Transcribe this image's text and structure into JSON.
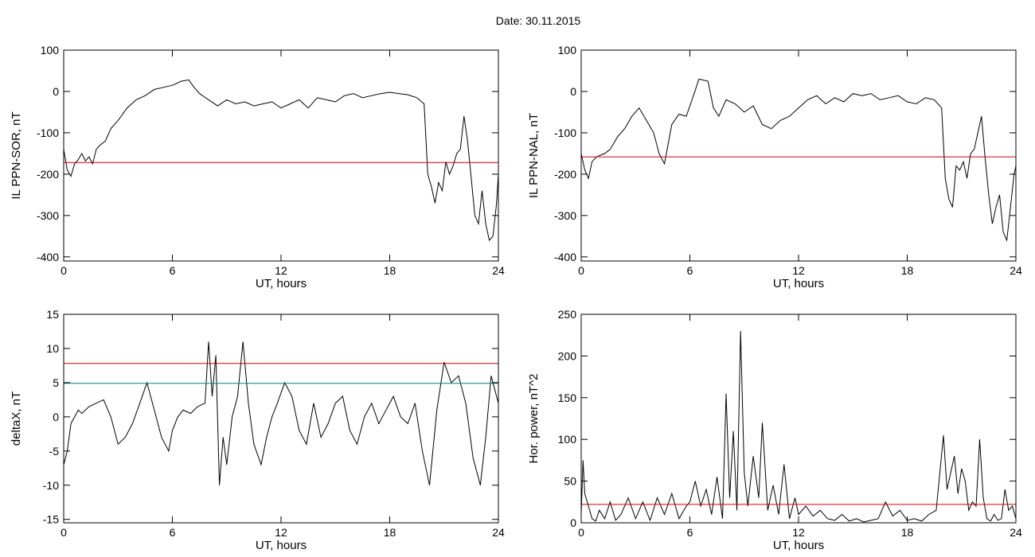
{
  "title": "Date:  30.11.2015",
  "chart_data": [
    {
      "type": "line",
      "id": "ppn-sor",
      "xlabel": "UT, hours",
      "ylabel": "IL PPN-SOR, nT",
      "xlim": [
        0,
        24
      ],
      "ylim": [
        -410,
        100
      ],
      "xticks": [
        0,
        6,
        12,
        18,
        24
      ],
      "yticks": [
        -400,
        -300,
        -200,
        -100,
        0,
        100
      ],
      "series": [
        {
          "color": "#000000",
          "x": [
            0,
            0.2,
            0.4,
            0.6,
            0.8,
            1.0,
            1.2,
            1.4,
            1.6,
            1.8,
            2.0,
            2.3,
            2.6,
            3.0,
            3.5,
            4.0,
            4.5,
            5.0,
            5.5,
            6.0,
            6.5,
            6.9,
            7.2,
            7.5,
            8.0,
            8.5,
            9.0,
            9.5,
            10.0,
            10.5,
            11.0,
            11.5,
            12.0,
            12.5,
            13.0,
            13.5,
            14.0,
            14.5,
            15.0,
            15.5,
            16.0,
            16.5,
            17.0,
            17.5,
            18.0,
            18.5,
            19.0,
            19.5,
            19.9,
            20.1,
            20.3,
            20.5,
            20.7,
            20.9,
            21.1,
            21.3,
            21.5,
            21.7,
            21.9,
            22.1,
            22.3,
            22.5,
            22.7,
            22.9,
            23.1,
            23.3,
            23.5,
            23.7,
            23.9,
            24.0
          ],
          "y": [
            -140,
            -190,
            -205,
            -175,
            -165,
            -150,
            -168,
            -158,
            -175,
            -140,
            -130,
            -120,
            -90,
            -70,
            -40,
            -20,
            -10,
            5,
            10,
            15,
            25,
            28,
            10,
            -5,
            -20,
            -35,
            -20,
            -30,
            -25,
            -35,
            -30,
            -25,
            -40,
            -30,
            -20,
            -40,
            -15,
            -20,
            -25,
            -10,
            -5,
            -15,
            -10,
            -5,
            -2,
            -5,
            -8,
            -15,
            -30,
            -200,
            -230,
            -270,
            -220,
            -240,
            -170,
            -200,
            -180,
            -150,
            -140,
            -60,
            -120,
            -210,
            -300,
            -320,
            -240,
            -320,
            -360,
            -350,
            -270,
            -200
          ]
        },
        {
          "color": "#d00000",
          "x": [
            0,
            24
          ],
          "y": [
            -172,
            -172
          ]
        }
      ]
    },
    {
      "type": "line",
      "id": "ppn-nal",
      "xlabel": "UT, hours",
      "ylabel": "IL PPN-NAL, nT",
      "xlim": [
        0,
        24
      ],
      "ylim": [
        -410,
        100
      ],
      "xticks": [
        0,
        6,
        12,
        18,
        24
      ],
      "yticks": [
        -400,
        -300,
        -200,
        -100,
        0,
        100
      ],
      "series": [
        {
          "color": "#000000",
          "x": [
            0,
            0.2,
            0.4,
            0.6,
            0.8,
            1.0,
            1.3,
            1.6,
            2.0,
            2.4,
            2.8,
            3.2,
            3.6,
            4.0,
            4.3,
            4.6,
            5.0,
            5.4,
            5.8,
            6.2,
            6.5,
            7.0,
            7.3,
            7.6,
            8.0,
            8.5,
            9.0,
            9.5,
            10.0,
            10.5,
            11.0,
            11.5,
            12.0,
            12.5,
            13.0,
            13.5,
            14.0,
            14.5,
            15.0,
            15.5,
            16.0,
            16.5,
            17.0,
            17.5,
            18.0,
            18.5,
            19.0,
            19.5,
            19.9,
            20.1,
            20.3,
            20.5,
            20.7,
            20.9,
            21.1,
            21.3,
            21.5,
            21.7,
            21.9,
            22.1,
            22.3,
            22.5,
            22.7,
            22.9,
            23.1,
            23.3,
            23.5,
            23.7,
            23.9,
            24.0
          ],
          "y": [
            -150,
            -190,
            -210,
            -170,
            -160,
            -155,
            -150,
            -140,
            -110,
            -90,
            -60,
            -40,
            -70,
            -100,
            -150,
            -175,
            -80,
            -55,
            -60,
            -10,
            30,
            25,
            -40,
            -60,
            -20,
            -30,
            -50,
            -35,
            -80,
            -90,
            -70,
            -60,
            -40,
            -20,
            -10,
            -30,
            -15,
            -25,
            -5,
            -10,
            -5,
            -20,
            -15,
            -10,
            -25,
            -30,
            -15,
            -20,
            -40,
            -210,
            -260,
            -280,
            -180,
            -190,
            -170,
            -210,
            -150,
            -140,
            -100,
            -60,
            -160,
            -250,
            -320,
            -280,
            -250,
            -340,
            -360,
            -280,
            -200,
            -180
          ]
        },
        {
          "color": "#d00000",
          "x": [
            0,
            24
          ],
          "y": [
            -158,
            -158
          ]
        }
      ]
    },
    {
      "type": "line",
      "id": "deltax",
      "xlabel": "UT, hours",
      "ylabel": "deltaX, nT",
      "xlim": [
        0,
        24
      ],
      "ylim": [
        -15.5,
        15
      ],
      "xticks": [
        0,
        6,
        12,
        18,
        24
      ],
      "yticks": [
        -15,
        -10,
        -5,
        0,
        5,
        10,
        15
      ],
      "series": [
        {
          "color": "#000000",
          "x": [
            0,
            0.2,
            0.4,
            0.6,
            0.8,
            1.0,
            1.4,
            1.8,
            2.2,
            2.6,
            3.0,
            3.4,
            3.8,
            4.2,
            4.6,
            5.0,
            5.4,
            5.8,
            6.0,
            6.3,
            6.6,
            7.0,
            7.4,
            7.8,
            8.0,
            8.2,
            8.4,
            8.6,
            8.8,
            9.0,
            9.3,
            9.6,
            9.9,
            10.2,
            10.5,
            10.9,
            11.2,
            11.5,
            11.8,
            12.2,
            12.6,
            13.0,
            13.4,
            13.8,
            14.2,
            14.6,
            15.0,
            15.4,
            15.8,
            16.2,
            16.6,
            17.0,
            17.4,
            17.8,
            18.2,
            18.6,
            19.0,
            19.4,
            19.8,
            20.2,
            20.6,
            21.0,
            21.4,
            21.8,
            22.2,
            22.6,
            23.0,
            23.3,
            23.6,
            24.0
          ],
          "y": [
            -7,
            -5,
            -1,
            0,
            1,
            0.5,
            1.5,
            2,
            2.5,
            0,
            -4,
            -3,
            -1,
            2,
            5,
            1,
            -3,
            -5,
            -2,
            0,
            1,
            0.5,
            1.5,
            2,
            11,
            3,
            9,
            -10,
            -3,
            -7,
            0,
            3,
            11,
            2,
            -4,
            -7,
            -3,
            0,
            2,
            5,
            3,
            -2,
            -4,
            2,
            -3,
            -1,
            2,
            3,
            -2,
            -4,
            0,
            2,
            -1,
            1,
            3,
            0,
            -1,
            2,
            -5,
            -10,
            1,
            8,
            5,
            6,
            2,
            -6,
            -10,
            -3,
            6,
            2
          ]
        },
        {
          "color": "#d00000",
          "x": [
            0,
            24
          ],
          "y": [
            7.8,
            7.8
          ]
        },
        {
          "color": "#008080",
          "x": [
            0,
            24
          ],
          "y": [
            4.9,
            4.9
          ]
        }
      ]
    },
    {
      "type": "line",
      "id": "hor-power",
      "xlabel": "UT, hours",
      "ylabel": "Hor. power, nT^2",
      "xlim": [
        0,
        24
      ],
      "ylim": [
        0,
        250
      ],
      "xticks": [
        0,
        6,
        12,
        18,
        24
      ],
      "yticks": [
        0,
        50,
        100,
        150,
        200,
        250
      ],
      "series": [
        {
          "color": "#000000",
          "x": [
            0,
            0.1,
            0.2,
            0.4,
            0.6,
            0.8,
            1.0,
            1.3,
            1.6,
            1.9,
            2.2,
            2.6,
            3.0,
            3.4,
            3.8,
            4.2,
            4.6,
            5.0,
            5.4,
            5.8,
            6.0,
            6.3,
            6.6,
            6.9,
            7.2,
            7.5,
            7.8,
            8.0,
            8.2,
            8.4,
            8.6,
            8.8,
            9.0,
            9.2,
            9.5,
            9.8,
            10.0,
            10.3,
            10.6,
            10.9,
            11.2,
            11.5,
            11.8,
            12.0,
            12.4,
            12.8,
            13.2,
            13.6,
            14.0,
            14.4,
            14.8,
            15.2,
            15.6,
            16.0,
            16.4,
            16.8,
            17.2,
            17.6,
            18.0,
            18.4,
            18.8,
            19.2,
            19.6,
            20.0,
            20.2,
            20.4,
            20.6,
            20.8,
            21.0,
            21.2,
            21.4,
            21.6,
            21.8,
            22.0,
            22.2,
            22.4,
            22.6,
            22.8,
            23.0,
            23.2,
            23.4,
            23.6,
            23.8,
            24.0
          ],
          "y": [
            10,
            75,
            35,
            20,
            5,
            2,
            15,
            5,
            25,
            3,
            10,
            30,
            5,
            25,
            3,
            30,
            10,
            35,
            5,
            20,
            25,
            50,
            20,
            40,
            10,
            55,
            5,
            155,
            30,
            110,
            15,
            230,
            60,
            20,
            80,
            30,
            120,
            15,
            45,
            10,
            70,
            5,
            30,
            10,
            20,
            8,
            15,
            5,
            3,
            10,
            2,
            5,
            1,
            3,
            5,
            25,
            8,
            15,
            3,
            5,
            2,
            10,
            15,
            105,
            40,
            60,
            80,
            35,
            65,
            50,
            15,
            25,
            20,
            100,
            30,
            5,
            2,
            10,
            3,
            5,
            40,
            15,
            20,
            5
          ]
        },
        {
          "color": "#d00000",
          "x": [
            0,
            24
          ],
          "y": [
            22,
            22
          ]
        }
      ]
    }
  ]
}
